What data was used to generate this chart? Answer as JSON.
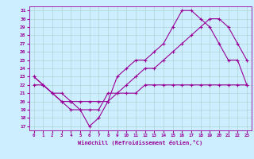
{
  "title": "",
  "xlabel": "Windchill (Refroidissement éolien,°C)",
  "bg_color": "#cceeff",
  "line_color": "#990099",
  "xlim": [
    -0.5,
    23.5
  ],
  "ylim": [
    16.5,
    31.5
  ],
  "xticks": [
    0,
    1,
    2,
    3,
    4,
    5,
    6,
    7,
    8,
    9,
    10,
    11,
    12,
    13,
    14,
    15,
    16,
    17,
    18,
    19,
    20,
    21,
    22,
    23
  ],
  "yticks": [
    17,
    18,
    19,
    20,
    21,
    22,
    23,
    24,
    25,
    26,
    27,
    28,
    29,
    30,
    31
  ],
  "curve1_x": [
    0,
    1,
    2,
    3,
    4,
    5,
    6,
    7,
    8,
    9,
    10,
    11,
    12,
    13,
    14,
    15,
    16,
    17,
    18,
    19,
    20,
    21,
    22,
    23
  ],
  "curve1_y": [
    23,
    22,
    21,
    20,
    19,
    19,
    17,
    18,
    20,
    23,
    24,
    25,
    25,
    26,
    27,
    29,
    31,
    31,
    30,
    29,
    27,
    25,
    25,
    22
  ],
  "curve2_x": [
    0,
    1,
    2,
    3,
    4,
    5,
    6,
    7,
    8,
    9,
    10,
    11,
    12,
    13,
    14,
    15,
    16,
    17,
    18,
    19,
    20,
    21,
    22,
    23
  ],
  "curve2_y": [
    23,
    22,
    21,
    20,
    20,
    19,
    19,
    19,
    21,
    21,
    22,
    23,
    24,
    24,
    25,
    26,
    27,
    28,
    29,
    30,
    30,
    29,
    27,
    25
  ],
  "curve3_x": [
    0,
    1,
    2,
    3,
    4,
    5,
    6,
    7,
    8,
    9,
    10,
    11,
    12,
    13,
    14,
    15,
    16,
    17,
    18,
    19,
    20,
    21,
    22,
    23
  ],
  "curve3_y": [
    22,
    22,
    21,
    21,
    20,
    20,
    20,
    20,
    20,
    21,
    21,
    21,
    22,
    22,
    22,
    22,
    22,
    22,
    22,
    22,
    22,
    22,
    22,
    22
  ]
}
